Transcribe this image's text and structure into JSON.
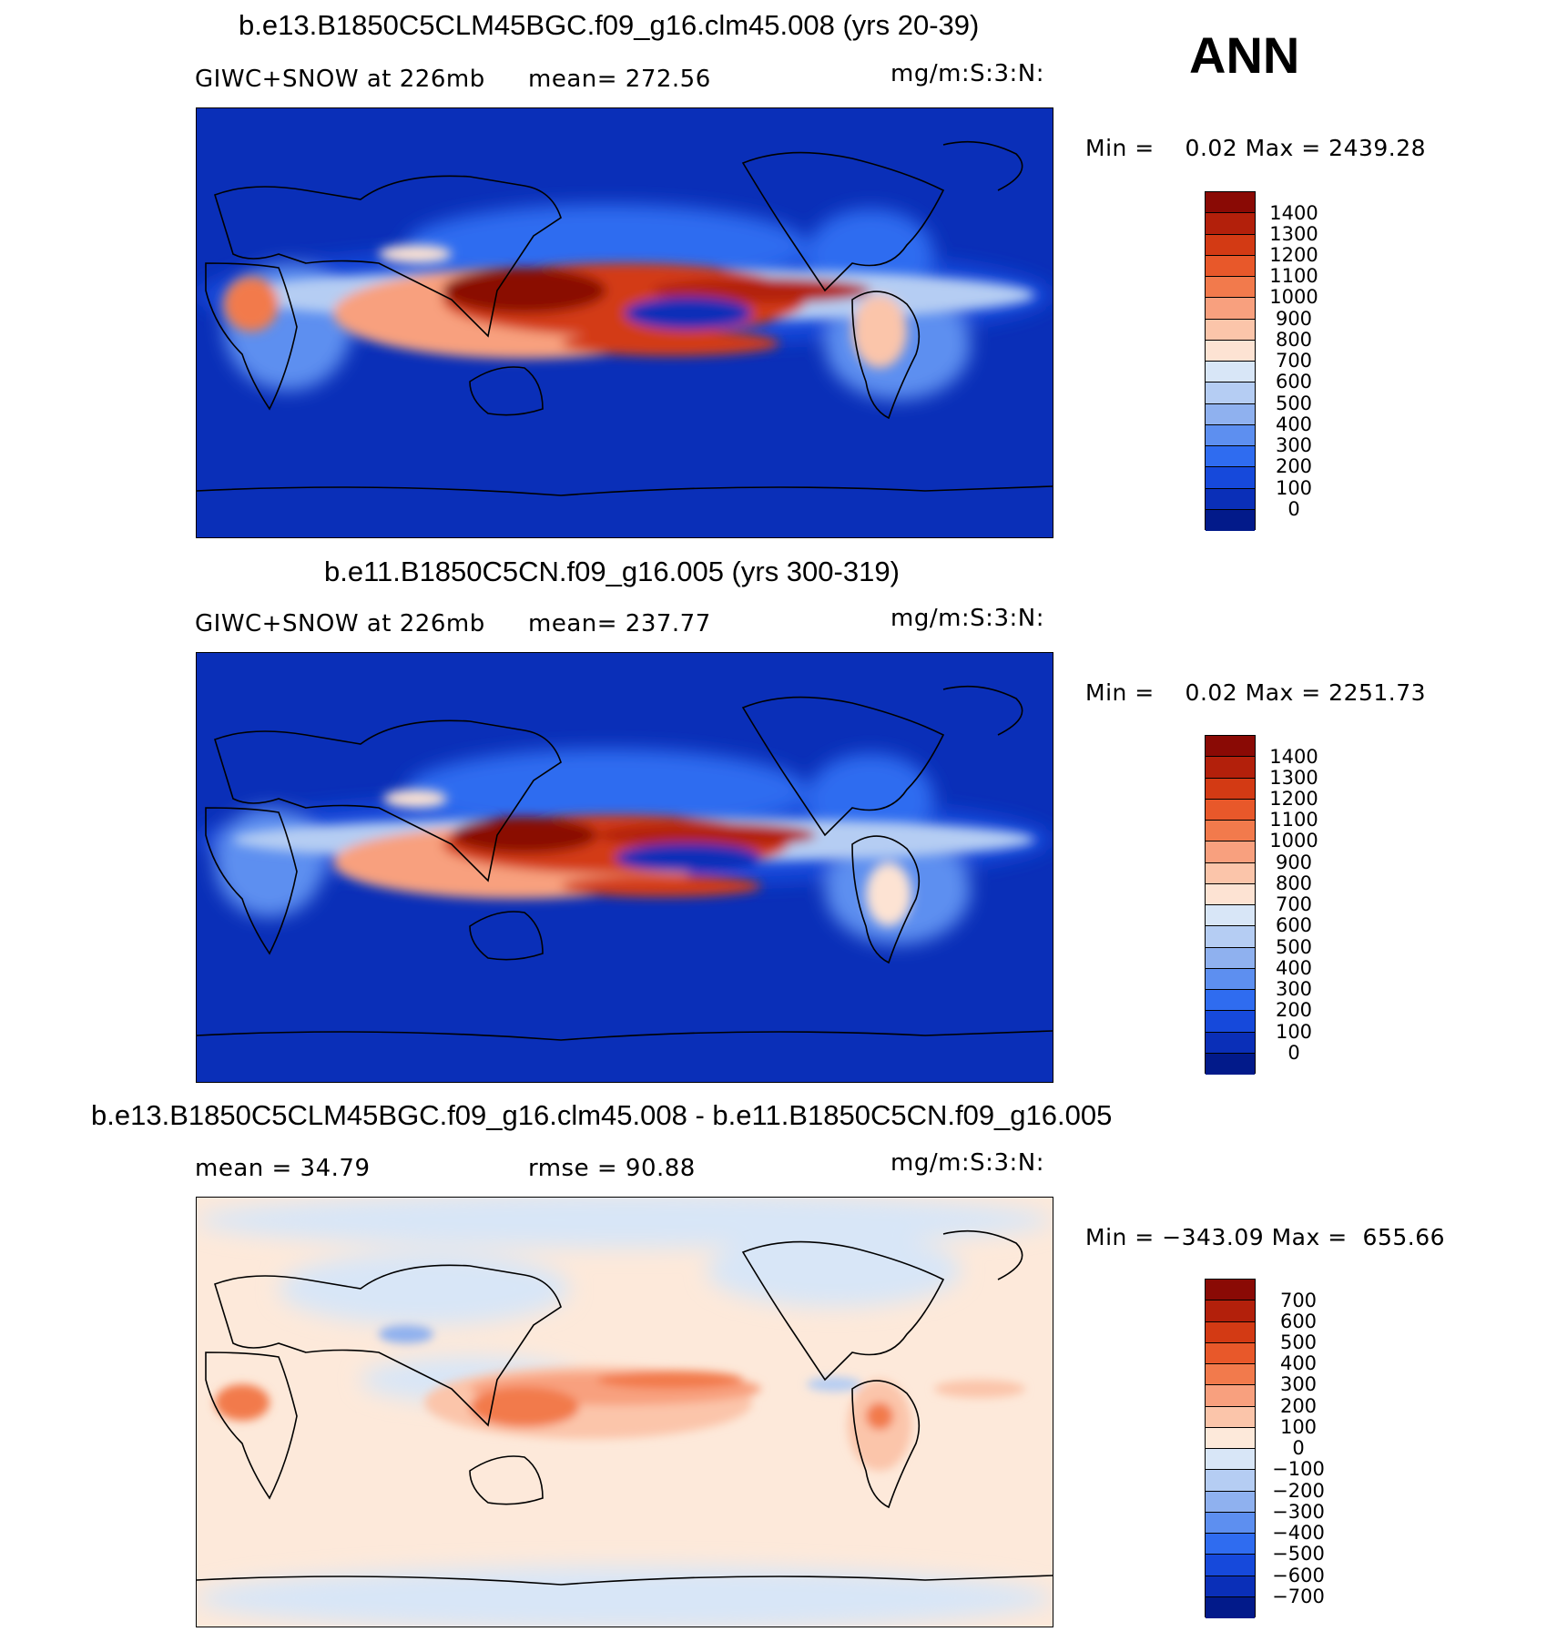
{
  "season": "ANN",
  "panels": [
    {
      "title": "b.e13.B1850C5CLM45BGC.f09_g16.clm45.008 (yrs 20-39)",
      "left_label": "GIWC+SNOW at 226mb",
      "stat_label": "mean= 272.56",
      "units": "mg/m:S:3:N:",
      "minmax": "Min =    0.02 Max = 2439.28",
      "colorbar": {
        "labels": [
          "1400",
          "1300",
          "1200",
          "1100",
          "1000",
          "900",
          "800",
          "700",
          "600",
          "500",
          "400",
          "300",
          "200",
          "100",
          "0"
        ],
        "colors": [
          "#8a0a05",
          "#b3200b",
          "#d33a14",
          "#e8582a",
          "#f27a4c",
          "#f8a07e",
          "#fbc5aa",
          "#fde3d3",
          "#d8e6f7",
          "#b5cdf3",
          "#8fb1ef",
          "#5d8ff0",
          "#2f6cf0",
          "#1649db",
          "#0a2fb8",
          "#021a8a"
        ]
      }
    },
    {
      "title": "b.e11.B1850C5CN.f09_g16.005 (yrs 300-319)",
      "left_label": "GIWC+SNOW at 226mb",
      "stat_label": "mean= 237.77",
      "units": "mg/m:S:3:N:",
      "minmax": "Min =    0.02 Max = 2251.73",
      "colorbar": {
        "labels": [
          "1400",
          "1300",
          "1200",
          "1100",
          "1000",
          "900",
          "800",
          "700",
          "600",
          "500",
          "400",
          "300",
          "200",
          "100",
          "0"
        ],
        "colors": [
          "#8a0a05",
          "#b3200b",
          "#d33a14",
          "#e8582a",
          "#f27a4c",
          "#f8a07e",
          "#fbc5aa",
          "#fde3d3",
          "#d8e6f7",
          "#b5cdf3",
          "#8fb1ef",
          "#5d8ff0",
          "#2f6cf0",
          "#1649db",
          "#0a2fb8",
          "#021a8a"
        ]
      }
    },
    {
      "title": "b.e13.B1850C5CLM45BGC.f09_g16.clm45.008 - b.e11.B1850C5CN.f09_g16.005",
      "left_label": "mean =   34.79",
      "stat_label": "rmse =   90.88",
      "units": "mg/m:S:3:N:",
      "minmax": "Min = −343.09 Max =  655.66",
      "colorbar": {
        "labels": [
          "700",
          "600",
          "500",
          "400",
          "300",
          "200",
          "100",
          "0",
          "−100",
          "−200",
          "−300",
          "−400",
          "−500",
          "−600",
          "−700"
        ],
        "colors": [
          "#8a0a05",
          "#b3200b",
          "#d33a14",
          "#e8582a",
          "#f27a4c",
          "#f8a07e",
          "#fbc5aa",
          "#fde9da",
          "#d8e6f7",
          "#b5cdf3",
          "#8fb1ef",
          "#5d8ff0",
          "#2f6cf0",
          "#1649db",
          "#0a2fb8",
          "#021a8a"
        ]
      }
    }
  ]
}
